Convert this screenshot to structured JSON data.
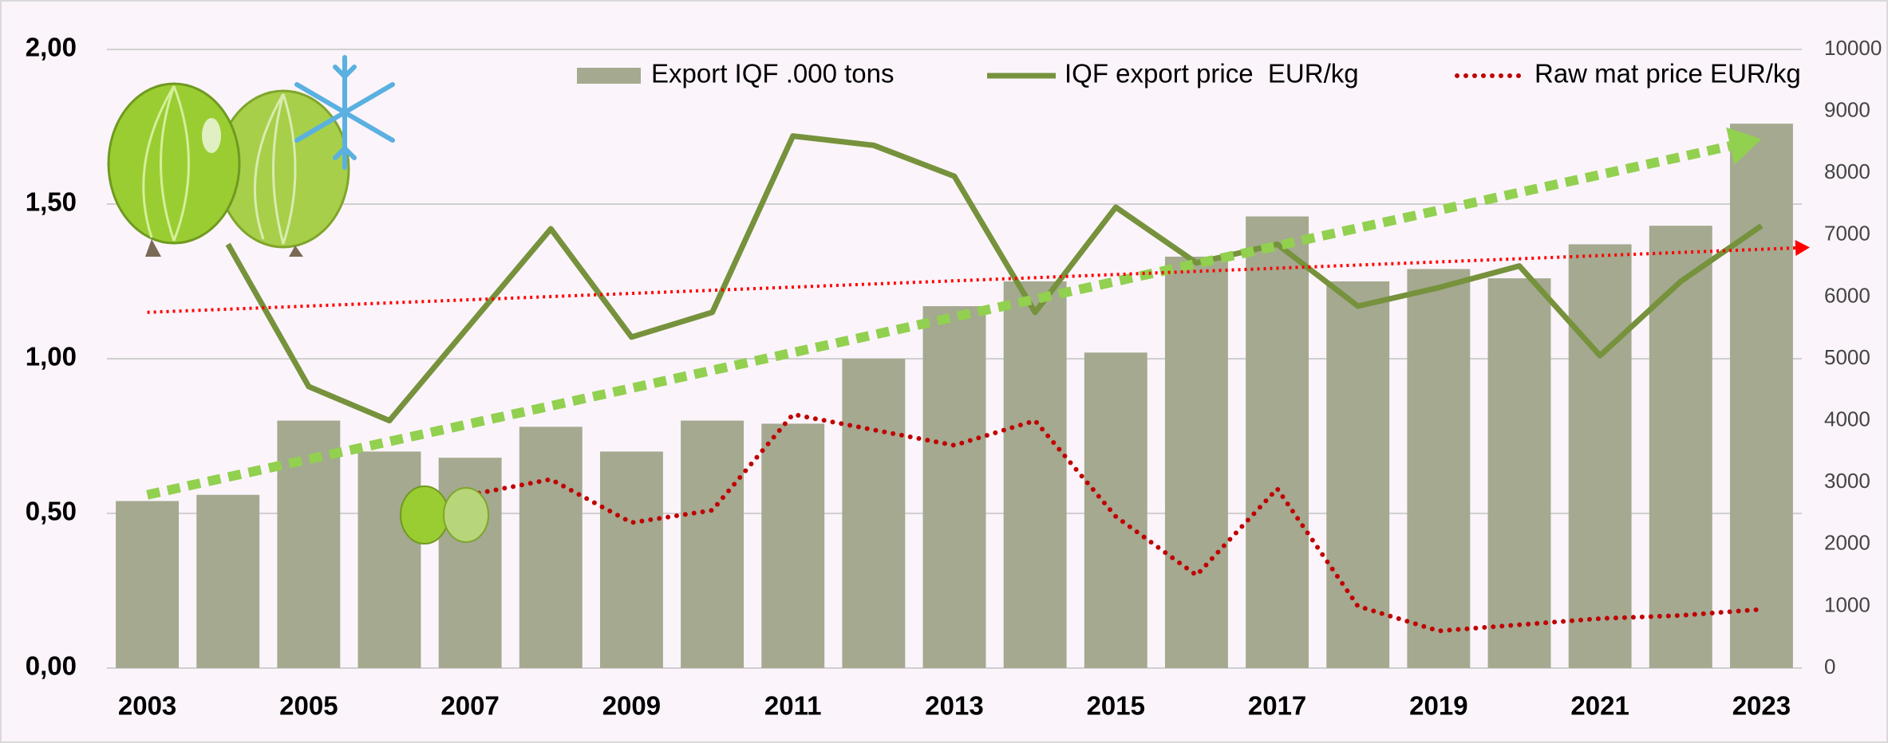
{
  "chart_data": {
    "type": "combo",
    "categories": [
      "2003",
      null,
      "2005",
      null,
      "2007",
      null,
      "2009",
      null,
      "2011",
      null,
      "2013",
      null,
      "2015",
      null,
      "2017",
      null,
      "2019",
      null,
      "2021",
      null,
      "2023"
    ],
    "series": [
      {
        "name": "Export IQF .000 tons",
        "type": "bar",
        "axis": "y2",
        "color": "#a4a990",
        "values": [
          2700,
          2800,
          4000,
          3500,
          3400,
          3900,
          3500,
          4000,
          3950,
          5000,
          5850,
          6250,
          5100,
          6650,
          7300,
          6250,
          6450,
          6300,
          6850,
          7150,
          8800
        ]
      },
      {
        "name": "IQF export price  EUR/kg",
        "type": "line",
        "axis": "y",
        "color": "#76923c",
        "values": [
          null,
          1.37,
          0.91,
          0.8,
          1.11,
          1.42,
          1.07,
          1.15,
          1.72,
          1.69,
          1.59,
          1.15,
          1.49,
          1.31,
          1.37,
          1.17,
          1.23,
          1.3,
          1.01,
          1.25,
          1.43
        ]
      },
      {
        "name": "Raw mat price EUR/kg",
        "type": "line",
        "style": "dotted",
        "axis": "y",
        "color": "#c00000",
        "values": [
          null,
          null,
          null,
          null,
          0.56,
          0.61,
          0.47,
          0.51,
          0.82,
          0.77,
          0.72,
          0.8,
          0.49,
          0.3,
          0.58,
          0.2,
          0.12,
          0.14,
          0.16,
          0.17,
          0.19
        ]
      }
    ],
    "trendlines": [
      {
        "color": "#92d050",
        "values": [
          0.56,
          1.71
        ]
      },
      {
        "color": "#ff0000",
        "values": [
          1.15,
          1.36
        ]
      }
    ],
    "ylim": [
      0,
      2
    ],
    "yticks": [
      {
        "value": 0,
        "label": "0,00"
      },
      {
        "value": 0.5,
        "label": "0,50"
      },
      {
        "value": 1,
        "label": "1,00"
      },
      {
        "value": 1.5,
        "label": "1,50"
      },
      {
        "value": 2,
        "label": "2,00"
      }
    ],
    "y2lim": [
      0,
      10000
    ],
    "y2ticks": [
      0,
      1000,
      2000,
      3000,
      4000,
      5000,
      6000,
      7000,
      8000,
      9000,
      10000
    ],
    "grid": true,
    "legend": "top-right"
  }
}
